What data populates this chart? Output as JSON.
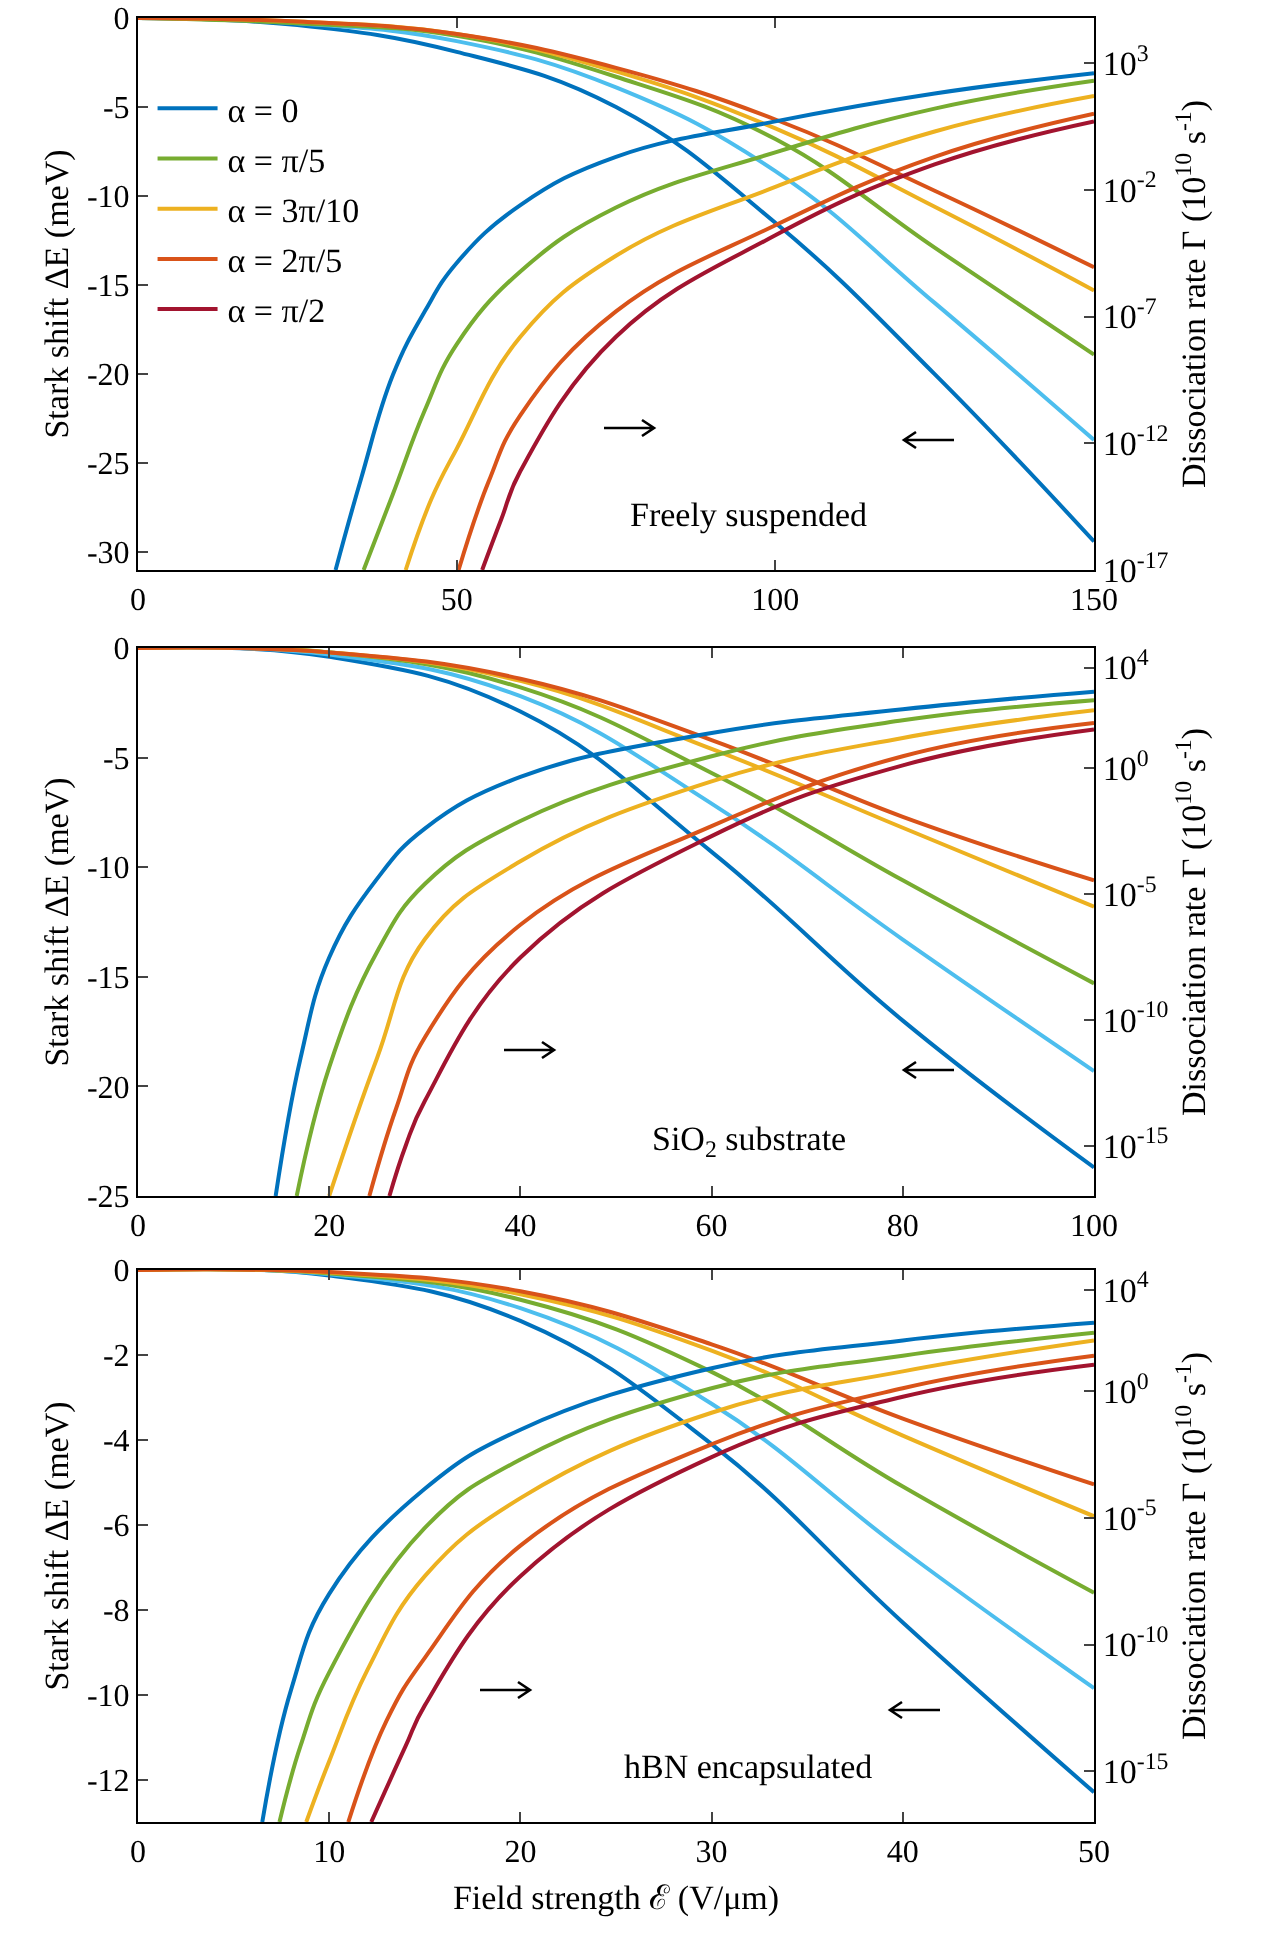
{
  "chart_data": [
    {
      "type": "line",
      "xlim": [
        0,
        150
      ],
      "xticks": [
        0,
        50,
        100,
        150
      ],
      "ylim": [
        -31,
        0
      ],
      "yticks": [
        0,
        -5,
        -10,
        -15,
        -20,
        -25,
        -30
      ],
      "ylabel": "Stark shift ΔE (meV)",
      "y2label": "Dissociation rate Γ (10$^{10}$ s$^{-1}$)",
      "log": "y2",
      "y2lim": [
        1e-17,
        60000
      ],
      "y2ticks": [
        {
          "value": 1000,
          "label": "10$^{3}$"
        },
        {
          "value": 0.01,
          "label": "10$^{-2}$"
        },
        {
          "value": 1e-07,
          "label": "10$^{-7}$"
        },
        {
          "value": 1e-12,
          "label": "10$^{-12}$"
        },
        {
          "value": 1e-17,
          "label": "10$^{-17}$"
        }
      ],
      "legend": "top left",
      "annotations": [
        "Freely suspended"
      ],
      "series": [
        {
          "color": "#0072bd",
          "x": [
            0,
            25,
            50,
            75,
            100,
            125,
            150
          ],
          "values": [
            0,
            -0.4,
            -1.9,
            -5.0,
            -11.5,
            -20,
            -29.4
          ]
        },
        {
          "color": "#4dbeee",
          "x": [
            0,
            25,
            50,
            75,
            100,
            125,
            150
          ],
          "values": [
            0,
            -0.3,
            -1.3,
            -3.9,
            -8.6,
            -16,
            -23.7
          ]
        },
        {
          "color": "#77ac30",
          "x": [
            0,
            25,
            50,
            75,
            100,
            125,
            150
          ],
          "values": [
            0,
            -0.3,
            -1.0,
            -3.3,
            -6.8,
            -12.9,
            -18.9
          ]
        },
        {
          "color": "#edb120",
          "x": [
            0,
            25,
            50,
            75,
            100,
            125,
            150
          ],
          "values": [
            0,
            -0.2,
            -0.9,
            -3.0,
            -6.2,
            -10.6,
            -15.3
          ]
        },
        {
          "color": "#d95319",
          "x": [
            0,
            25,
            50,
            75,
            100,
            125,
            150
          ],
          "values": [
            0,
            -0.2,
            -0.9,
            -2.8,
            -5.7,
            -9.7,
            -14
          ]
        },
        {
          "name": "α = 0",
          "axis": "y2",
          "color": "#0072bd",
          "x": [
            31,
            35,
            40,
            45,
            50,
            60,
            75,
            100,
            125,
            150
          ],
          "values": [
            1e-17,
            4e-14,
            5e-10,
            1.6e-07,
            1.3e-05,
            0.0025,
            0.2,
            5,
            63,
            400
          ]
        },
        {
          "name": "α = π/5",
          "axis": "y2",
          "color": "#77ac30",
          "x": [
            35.4,
            40,
            45,
            50,
            60,
            75,
            100,
            125,
            150
          ],
          "values": [
            1e-17,
            1e-14,
            2e-11,
            8e-09,
            6e-06,
            0.002,
            0.3,
            16,
            200
          ]
        },
        {
          "name": "α = 3π/10",
          "axis": "y2",
          "color": "#edb120",
          "x": [
            42,
            46,
            50,
            60,
            75,
            100,
            125,
            150
          ],
          "values": [
            1e-17,
            6e-15,
            6e-13,
            1.6e-08,
            2.5e-05,
            0.013,
            2,
            50
          ]
        },
        {
          "name": "α = 2π/5",
          "axis": "y2",
          "color": "#d95319",
          "x": [
            50.3,
            55,
            60,
            75,
            100,
            125,
            150
          ],
          "values": [
            1e-17,
            3e-14,
            1.3e-11,
            1.6e-07,
            0.0004,
            0.2,
            10
          ]
        },
        {
          "name": "α = π/2",
          "axis": "y2",
          "color": "#a2142f",
          "x": [
            54,
            57,
            60,
            75,
            100,
            125,
            150
          ],
          "values": [
            1e-17,
            1e-15,
            8e-14,
            1.6e-08,
            0.00016,
            0.1,
            5
          ]
        }
      ]
    },
    {
      "type": "line",
      "xlim": [
        0,
        100
      ],
      "xticks": [
        0,
        20,
        40,
        60,
        80,
        100
      ],
      "ylim": [
        -25,
        0
      ],
      "yticks": [
        0,
        -5,
        -10,
        -15,
        -20,
        -25
      ],
      "ylabel": "Stark shift ΔE (meV)",
      "y2label": "Dissociation rate Γ (10$^{10}$ s$^{-1}$)",
      "log": "y2",
      "y2lim": [
        1e-17,
        60000
      ],
      "y2ticks": [
        {
          "value": 10000,
          "label": "10$^{4}$"
        },
        {
          "value": 1,
          "label": "10$^{0}$"
        },
        {
          "value": 1e-05,
          "label": "10$^{-5}$"
        },
        {
          "value": 1e-10,
          "label": "10$^{-10}$"
        },
        {
          "value": 1e-15,
          "label": "10$^{-15}$"
        }
      ],
      "annotations": [
        "SiO$_{2}$ substrate"
      ],
      "series": [
        {
          "color": "#0072bd",
          "x": [
            0,
            20,
            40,
            60,
            80,
            100
          ],
          "values": [
            0,
            -0.4,
            -2.9,
            -9.3,
            -17,
            -23.7
          ]
        },
        {
          "color": "#4dbeee",
          "x": [
            0,
            20,
            40,
            60,
            80,
            100
          ],
          "values": [
            0,
            -0.3,
            -2.2,
            -7.1,
            -13.3,
            -19.3
          ]
        },
        {
          "color": "#77ac30",
          "x": [
            0,
            20,
            40,
            60,
            80,
            100
          ],
          "values": [
            0,
            -0.2,
            -1.8,
            -5.7,
            -10.6,
            -15.3
          ]
        },
        {
          "color": "#edb120",
          "x": [
            0,
            20,
            40,
            60,
            80,
            100
          ],
          "values": [
            0,
            -0.2,
            -1.5,
            -4.6,
            -8.2,
            -11.8
          ]
        },
        {
          "color": "#d95319",
          "x": [
            0,
            20,
            40,
            60,
            80,
            100
          ],
          "values": [
            0,
            -0.2,
            -1.4,
            -4.2,
            -7.7,
            -10.6
          ]
        },
        {
          "axis": "y2",
          "color": "#0072bd",
          "x": [
            14.4,
            17,
            20,
            25,
            30,
            40,
            60,
            80,
            100
          ],
          "values": [
            1e-17,
            3e-12,
            3e-08,
            4e-05,
            0.004,
            0.45,
            25,
            220,
            1100
          ]
        },
        {
          "axis": "y2",
          "color": "#77ac30",
          "x": [
            16.6,
            20,
            25,
            30,
            40,
            60,
            80,
            100
          ],
          "values": [
            1e-17,
            1.3e-12,
            5e-08,
            2.5e-05,
            0.008,
            3,
            80,
            500
          ]
        },
        {
          "axis": "y2",
          "color": "#edb120",
          "x": [
            20,
            25,
            30,
            40,
            60,
            80,
            100
          ],
          "values": [
            1e-17,
            3e-12,
            1.6e-07,
            0.0002,
            0.3,
            16,
            200
          ]
        },
        {
          "axis": "y2",
          "color": "#d95319",
          "x": [
            24.2,
            27,
            30,
            40,
            60,
            80,
            100
          ],
          "values": [
            1e-17,
            3e-14,
            2e-11,
            6e-07,
            0.005,
            3,
            63
          ]
        },
        {
          "axis": "y2",
          "color": "#a2142f",
          "x": [
            26.3,
            28,
            30,
            40,
            60,
            80,
            100
          ],
          "values": [
            1e-17,
            1e-15,
            6e-14,
            3e-08,
            0.002,
            1.3,
            35
          ]
        }
      ]
    },
    {
      "type": "line",
      "xlim": [
        0,
        50
      ],
      "xticks": [
        0,
        10,
        20,
        30,
        40,
        50
      ],
      "ylim": [
        -13,
        0
      ],
      "yticks": [
        0,
        -2,
        -4,
        -6,
        -8,
        -10,
        -12
      ],
      "xlabel": "Field strength ℰ (V/μm)",
      "ylabel": "Stark shift ΔE (meV)",
      "y2label": "Dissociation rate Γ (10$^{10}$ s$^{-1}$)",
      "log": "y2",
      "y2lim": [
        1e-17,
        60000
      ],
      "y2ticks": [
        {
          "value": 10000,
          "label": "10$^{4}$"
        },
        {
          "value": 1,
          "label": "10$^{0}$"
        },
        {
          "value": 1e-05,
          "label": "10$^{-5}$"
        },
        {
          "value": 1e-10,
          "label": "10$^{-10}$"
        },
        {
          "value": 1e-15,
          "label": "10$^{-15}$"
        }
      ],
      "annotations": [
        "hBN encapsulated"
      ],
      "series": [
        {
          "color": "#0072bd",
          "x": [
            0,
            10,
            20,
            30,
            40,
            50
          ],
          "values": [
            0,
            -0.13,
            -1.2,
            -4.1,
            -8.3,
            -12.3
          ]
        },
        {
          "color": "#4dbeee",
          "x": [
            0,
            10,
            20,
            30,
            40,
            50
          ],
          "values": [
            0,
            -0.1,
            -0.9,
            -3.15,
            -6.6,
            -9.85
          ]
        },
        {
          "color": "#77ac30",
          "x": [
            0,
            10,
            20,
            30,
            40,
            50
          ],
          "values": [
            0,
            -0.08,
            -0.7,
            -2.4,
            -5.1,
            -7.6
          ]
        },
        {
          "color": "#edb120",
          "x": [
            0,
            10,
            20,
            30,
            40,
            50
          ],
          "values": [
            0,
            -0.06,
            -0.57,
            -1.9,
            -3.9,
            -5.8
          ]
        },
        {
          "color": "#d95319",
          "x": [
            0,
            10,
            20,
            30,
            40,
            50
          ],
          "values": [
            0,
            -0.05,
            -0.5,
            -1.75,
            -3.5,
            -5.05
          ]
        },
        {
          "axis": "y2",
          "color": "#0072bd",
          "x": [
            6.5,
            8,
            10,
            15,
            20,
            30,
            40,
            50
          ],
          "values": [
            1e-17,
            1.6e-12,
            1e-08,
            0.00014,
            0.03,
            8,
            100,
            500
          ]
        },
        {
          "axis": "y2",
          "color": "#77ac30",
          "x": [
            7.4,
            8.5,
            10,
            15,
            20,
            30,
            40,
            50
          ],
          "values": [
            1e-17,
            1e-14,
            8e-12,
            4e-06,
            0.002,
            1.3,
            25,
            200
          ]
        },
        {
          "axis": "y2",
          "color": "#edb120",
          "x": [
            8.8,
            10,
            12,
            15,
            20,
            30,
            40,
            50
          ],
          "values": [
            1e-17,
            2.5e-15,
            1e-11,
            5e-08,
            6e-05,
            0.14,
            6,
            100
          ]
        },
        {
          "axis": "y2",
          "color": "#d95319",
          "x": [
            11,
            13,
            15,
            20,
            30,
            40,
            50
          ],
          "values": [
            1e-17,
            1e-13,
            3e-11,
            8e-07,
            0.008,
            1.3,
            25
          ]
        },
        {
          "axis": "y2",
          "color": "#a2142f",
          "x": [
            12.2,
            14,
            15,
            20,
            30,
            40,
            50
          ],
          "values": [
            1e-17,
            1e-14,
            4e-13,
            5e-08,
            0.0025,
            0.6,
            11
          ]
        }
      ]
    }
  ]
}
